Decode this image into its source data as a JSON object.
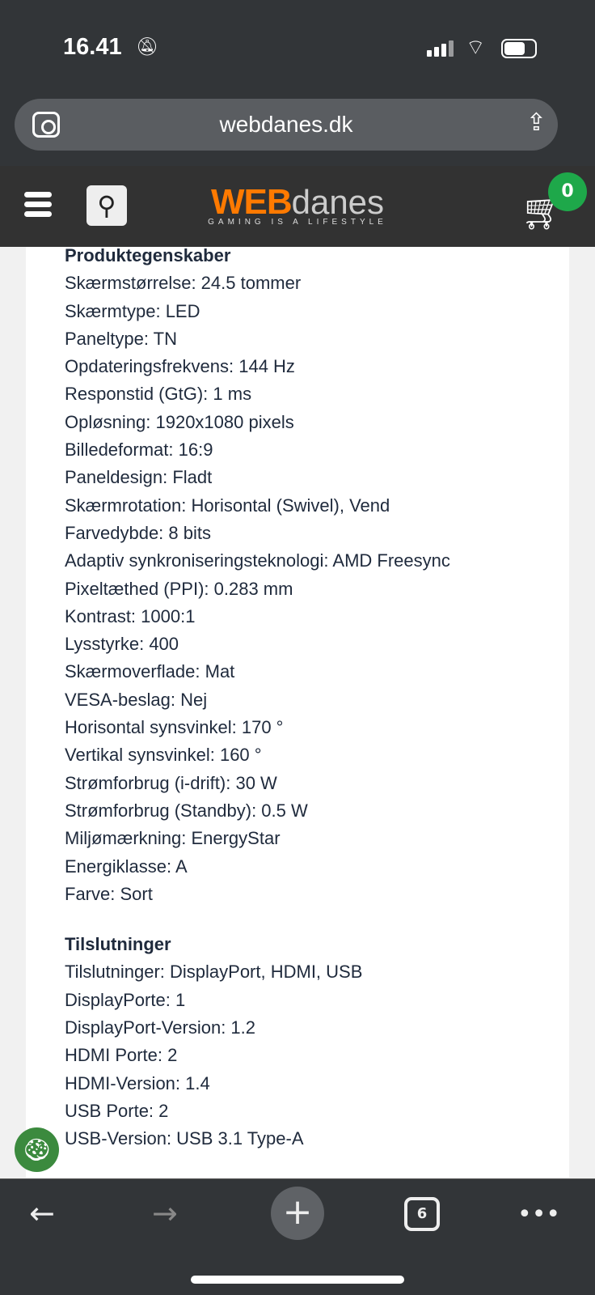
{
  "status_bar": {
    "time": "16.41",
    "mute_icon": "bell-slash-icon"
  },
  "browser": {
    "url": "webdanes.dk"
  },
  "header": {
    "logo_main": "WEB",
    "logo_sub": "danes",
    "tagline": "GAMING IS A LIFESTYLE",
    "cart_count": "0"
  },
  "sections": [
    {
      "title": "Produktegenskaber",
      "items": [
        "Skærmstørrelse: 24.5 tommer",
        "Skærmtype: LED",
        "Paneltype: TN",
        "Opdateringsfrekvens: 144 Hz",
        "Responstid (GtG): 1 ms",
        "Opløsning: 1920x1080 pixels",
        "Billedeformat: 16:9",
        "Paneldesign: Fladt",
        "Skærmrotation: Horisontal (Swivel), Vend",
        "Farvedybde: 8 bits",
        "Adaptiv synkroniseringsteknologi: AMD Freesync",
        "Pixeltæthed (PPI): 0.283 mm",
        "Kontrast: 1000:1",
        "Lysstyrke: 400",
        "Skærmoverflade: Mat",
        "VESA-beslag: Nej",
        "Horisontal synsvinkel: 170 °",
        "Vertikal synsvinkel: 160 °",
        "Strømforbrug (i-drift): 30 W",
        "Strømforbrug (Standby): 0.5 W",
        "Miljømærkning: EnergyStar",
        "Energiklasse: A",
        "Farve: Sort"
      ]
    },
    {
      "title": "Tilslutninger",
      "items": [
        "Tilslutninger: DisplayPort, HDMI, USB",
        "DisplayPorte: 1",
        "DisplayPort-Version: 1.2",
        "HDMI Porte: 2",
        "HDMI-Version: 1.4",
        "USB Porte: 2",
        "USB-Version: USB 3.1 Type-A"
      ]
    }
  ],
  "toolbar": {
    "tab_count": "6"
  },
  "colors": {
    "accent": "#ff7a00",
    "badge": "#1ea84a",
    "text": "#1f2a3c"
  }
}
